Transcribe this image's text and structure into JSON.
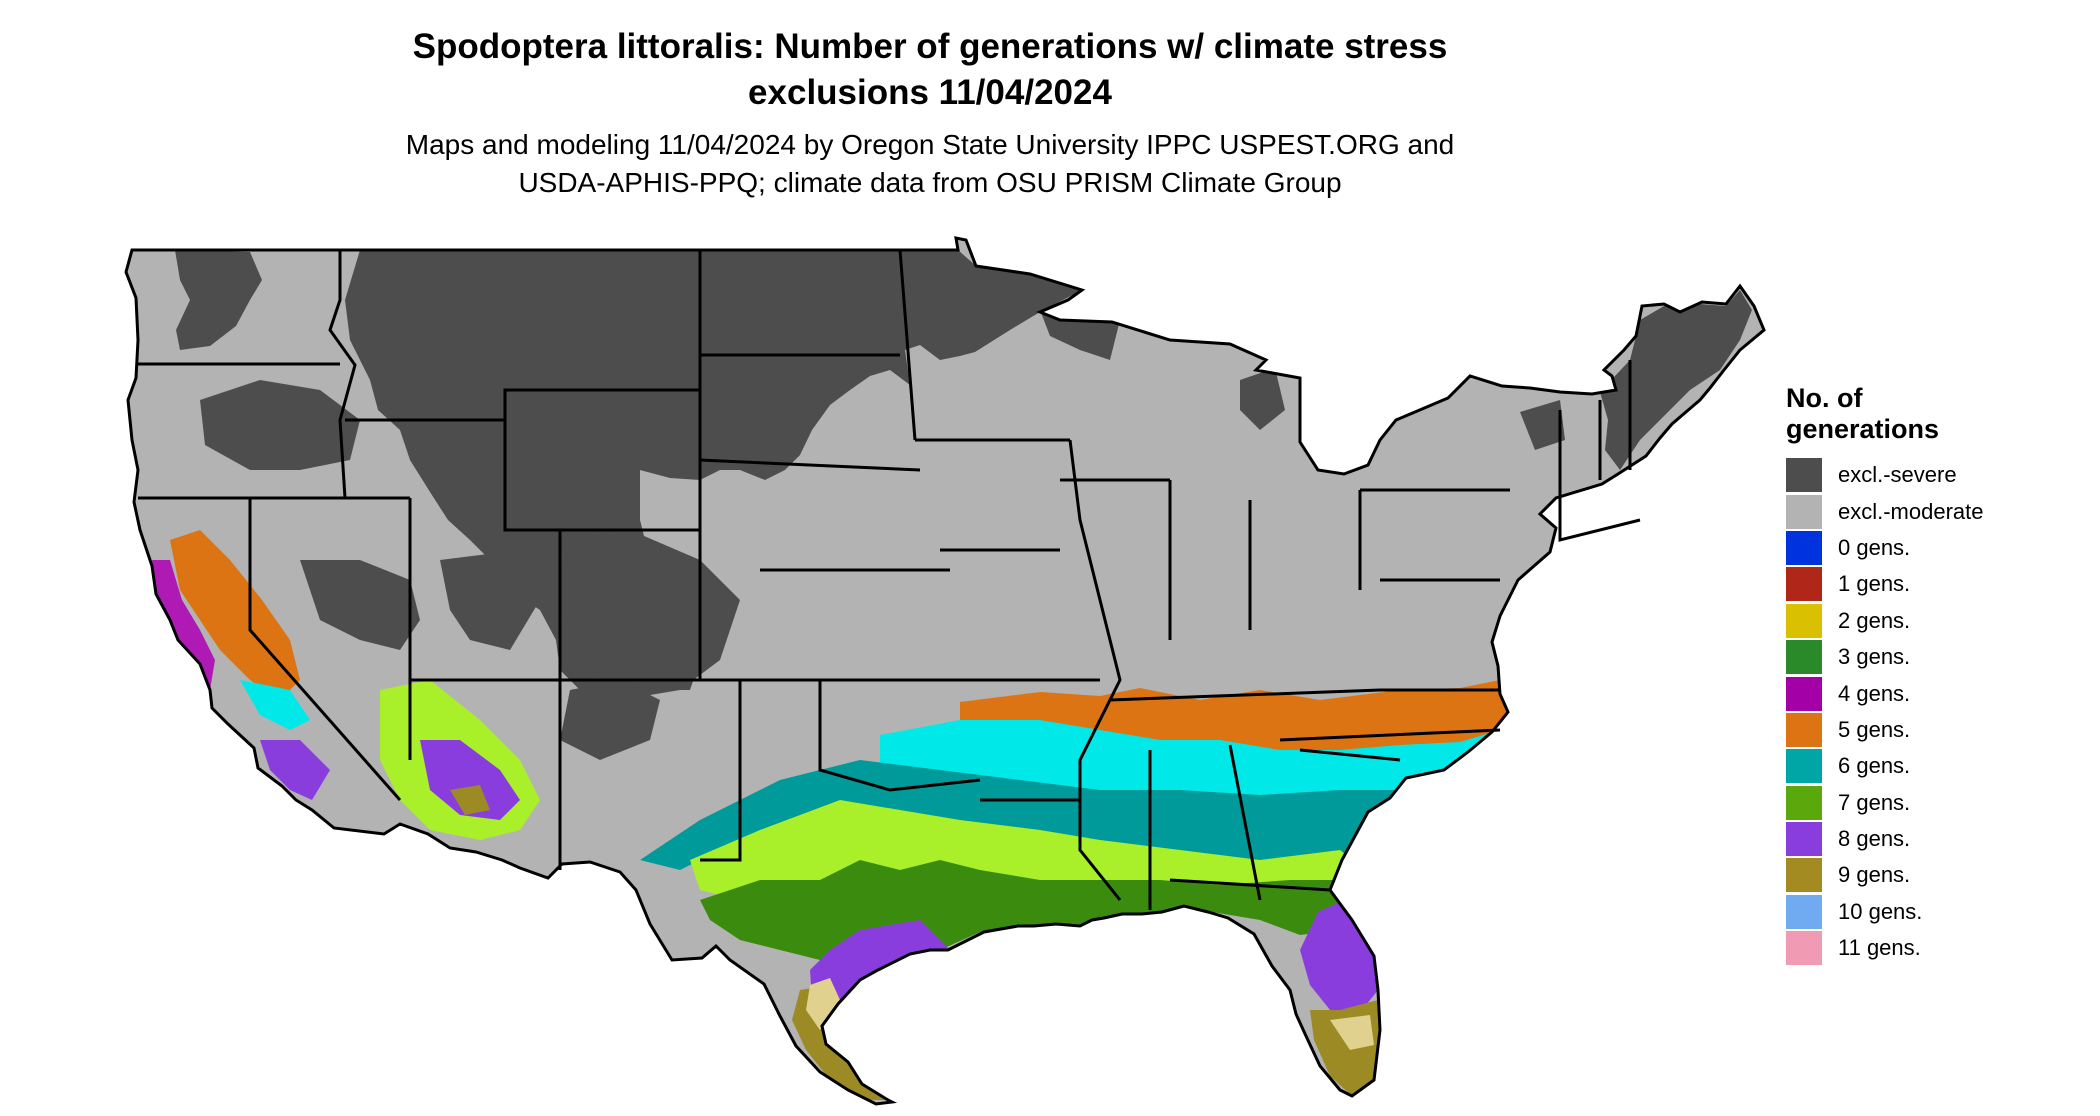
{
  "title_line1": "Spodoptera littoralis: Number of generations w/ climate stress",
  "title_line2": "exclusions 11/04/2024",
  "subtitle_line1": "Maps and modeling 11/04/2024 by Oregon State University IPPC USPEST.ORG and",
  "subtitle_line2": "USDA-APHIS-PPQ; climate data from OSU PRISM Climate Group",
  "legend": {
    "title_line1": "No. of",
    "title_line2": "generations",
    "items": [
      {
        "label": "excl.-severe",
        "color": "#4d4d4d"
      },
      {
        "label": "excl.-moderate",
        "color": "#b3b3b3"
      },
      {
        "label": "0 gens.",
        "color": "#0033dd"
      },
      {
        "label": "1 gens.",
        "color": "#b0271a"
      },
      {
        "label": "2 gens.",
        "color": "#d9c000"
      },
      {
        "label": "3 gens.",
        "color": "#2a8a2a"
      },
      {
        "label": "4 gens.",
        "color": "#a400a8"
      },
      {
        "label": "5 gens.",
        "color": "#dc7414"
      },
      {
        "label": "6 gens.",
        "color": "#00a6a6"
      },
      {
        "label": "7 gens.",
        "color": "#5aa80c"
      },
      {
        "label": "8 gens.",
        "color": "#8a3ddd"
      },
      {
        "label": "9 gens.",
        "color": "#a38b22"
      },
      {
        "label": "10 gens.",
        "color": "#70aaf0"
      },
      {
        "label": "11 gens.",
        "color": "#f09ab4"
      }
    ]
  },
  "map_colors": {
    "severe": "#4d4d4d",
    "moderate": "#b3b3b3",
    "gen3": "#3b8c0e",
    "gen4": "#b01ab4",
    "gen5": "#dc7414",
    "gen6": "#009a9a",
    "gen6_light": "#00e8e8",
    "gen7": "#aaf02a",
    "gen8": "#8a3ddd",
    "gen9": "#9c8a24",
    "gen9_light": "#e0d28e",
    "gen10": "#70aaf0",
    "border": "#000000"
  }
}
